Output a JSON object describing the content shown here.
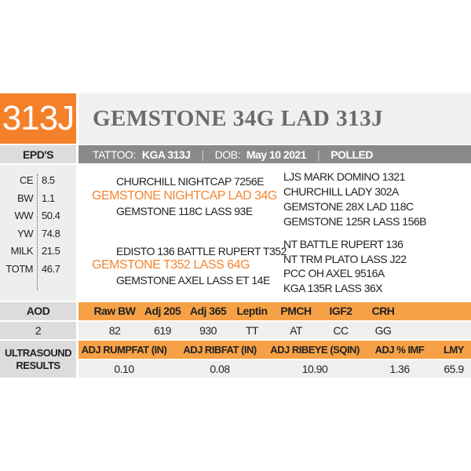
{
  "lot_number": "313J",
  "animal_name": "GEMSTONE 34G LAD 313J",
  "epd_label": "EPD'S",
  "info": {
    "tattoo_label": "TATTOO:",
    "tattoo": "KGA 313J",
    "dob_label": "DOB:",
    "dob": "May 10 2021",
    "polled": "POLLED",
    "separator": "|"
  },
  "epds": [
    {
      "trait": "CE",
      "value": "8.5"
    },
    {
      "trait": "BW",
      "value": "1.1"
    },
    {
      "trait": "WW",
      "value": "50.4"
    },
    {
      "trait": "YW",
      "value": "74.8"
    },
    {
      "trait": "MILK",
      "value": "21.5"
    },
    {
      "trait": "TOTM",
      "value": "46.7"
    }
  ],
  "pedigree": {
    "sire": {
      "name": "GEMSTONE NIGHTCAP LAD 34G",
      "sire": "CHURCHILL NIGHTCAP 7256E",
      "dam": "GEMSTONE 118C LASS 93E",
      "grandparents": [
        "LJS MARK DOMINO 1321",
        "CHURCHILL LADY 302A",
        "GEMSTONE 28X LAD 118C",
        "GEMSTONE 125R LASS 156B"
      ]
    },
    "dam": {
      "name": "GEMSTONE T352 LASS 64G",
      "sire": "EDISTO 136 BATTLE RUPERT T352",
      "dam": "GEMSTONE AXEL LASS ET 14E",
      "grandparents": [
        "NT BATTLE RUPERT 136",
        "NT TRM PLATO LASS J22",
        "PCC OH AXEL 9516A",
        "KGA 135R LASS 36X"
      ]
    }
  },
  "performance": {
    "label": "AOD",
    "label_value": "2",
    "headers": [
      "Raw BW",
      "Adj 205",
      "Adj 365",
      "Leptin",
      "PMCH",
      "IGF2",
      "CRH"
    ],
    "values": [
      "82",
      "619",
      "930",
      "TT",
      "AT",
      "CC",
      "GG"
    ]
  },
  "ultrasound": {
    "label_line1": "ULTRASOUND",
    "label_line2": "RESULTS",
    "headers": [
      "ADJ RUMPFAT (IN)",
      "ADJ RIBFAT (IN)",
      "ADJ RIBEYE (SQIN)",
      "ADJ % IMF",
      "LMY"
    ],
    "values": [
      "0.10",
      "0.08",
      "10.90",
      "1.36",
      "65.9"
    ]
  },
  "colors": {
    "accent_orange": "#f5802a",
    "header_orange": "#f7a146",
    "sire_dam_text": "#f5852f",
    "info_bar": "#8a8a8a"
  }
}
